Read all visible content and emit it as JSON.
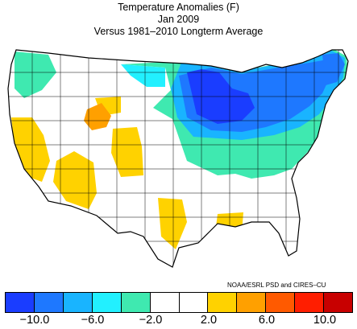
{
  "title": "Temperature Anomalies (F)",
  "period": "Jan 2009",
  "baseline": "Versus 1981–2010 Longterm Average",
  "credit": "NOAA/ESRL PSD and CIRES–CU",
  "colorbar": {
    "colors": [
      "#1a3dff",
      "#1e78ff",
      "#19b4ff",
      "#22f0ff",
      "#3fe9b0",
      "#ffffff",
      "#ffffff",
      "#ffd200",
      "#ffa000",
      "#ff5a00",
      "#ff1e00",
      "#c80000"
    ],
    "tick_labels": [
      "−10.0",
      "−6.0",
      "−2.0",
      "2.0",
      "6.0",
      "10.0"
    ]
  },
  "map_data": {
    "region": "Contiguous United States (climate divisions)",
    "variable": "Temperature anomaly (°F)"
  }
}
